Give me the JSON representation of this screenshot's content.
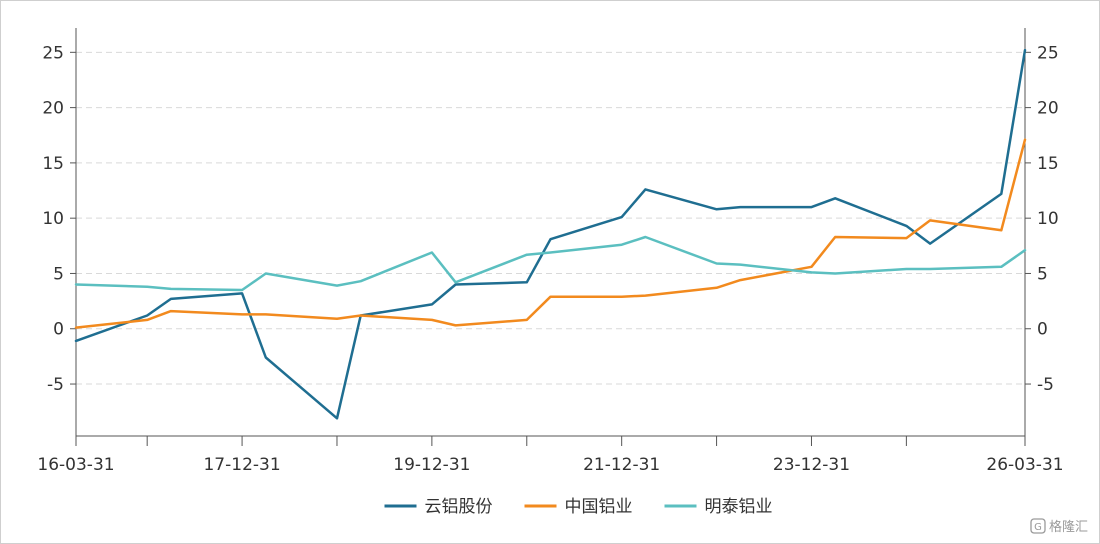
{
  "chart_data": {
    "type": "line",
    "x_ticks": [
      "16-03-31",
      "17-12-31",
      "19-12-31",
      "21-12-31",
      "23-12-31",
      "26-03-31"
    ],
    "x_tick_months": [
      0,
      21,
      45,
      69,
      93,
      120
    ],
    "minor_tick_months": [
      9,
      33,
      57,
      81,
      105
    ],
    "ylim": [
      -9.7,
      27.2
    ],
    "y_ticks": [
      -5,
      0,
      5,
      10,
      15,
      20,
      25
    ],
    "grid": true,
    "legend_position": "bottom-center",
    "series": [
      {
        "name": "云铝股份",
        "color": "#1F6E91",
        "points": [
          [
            0,
            -1.1
          ],
          [
            9,
            1.2
          ],
          [
            12,
            2.7
          ],
          [
            21,
            3.2
          ],
          [
            24,
            -2.6
          ],
          [
            33,
            -8.1
          ],
          [
            36,
            1.2
          ],
          [
            45,
            2.2
          ],
          [
            48,
            4.0
          ],
          [
            57,
            4.2
          ],
          [
            60,
            8.1
          ],
          [
            69,
            10.1
          ],
          [
            72,
            12.6
          ],
          [
            81,
            10.8
          ],
          [
            84,
            11.0
          ],
          [
            93,
            11.0
          ],
          [
            96,
            11.8
          ],
          [
            105,
            9.3
          ],
          [
            108,
            7.7
          ],
          [
            117,
            12.2
          ],
          [
            120,
            25.2
          ]
        ]
      },
      {
        "name": "中国铝业",
        "color": "#F28A1E",
        "points": [
          [
            0,
            0.1
          ],
          [
            9,
            0.8
          ],
          [
            12,
            1.6
          ],
          [
            21,
            1.3
          ],
          [
            24,
            1.3
          ],
          [
            33,
            0.9
          ],
          [
            36,
            1.2
          ],
          [
            45,
            0.8
          ],
          [
            48,
            0.3
          ],
          [
            57,
            0.8
          ],
          [
            60,
            2.9
          ],
          [
            69,
            2.9
          ],
          [
            72,
            3.0
          ],
          [
            81,
            3.7
          ],
          [
            84,
            4.4
          ],
          [
            93,
            5.6
          ],
          [
            96,
            8.3
          ],
          [
            105,
            8.2
          ],
          [
            108,
            9.8
          ],
          [
            117,
            8.9
          ],
          [
            120,
            17.1
          ]
        ]
      },
      {
        "name": "明泰铝业",
        "color": "#5BBFC0",
        "points": [
          [
            0,
            4.0
          ],
          [
            9,
            3.8
          ],
          [
            12,
            3.6
          ],
          [
            21,
            3.5
          ],
          [
            24,
            5.0
          ],
          [
            33,
            3.9
          ],
          [
            36,
            4.3
          ],
          [
            45,
            6.9
          ],
          [
            48,
            4.2
          ],
          [
            57,
            6.7
          ],
          [
            60,
            6.9
          ],
          [
            69,
            7.6
          ],
          [
            72,
            8.3
          ],
          [
            81,
            5.9
          ],
          [
            84,
            5.8
          ],
          [
            93,
            5.1
          ],
          [
            96,
            5.0
          ],
          [
            105,
            5.4
          ],
          [
            108,
            5.4
          ],
          [
            117,
            5.6
          ],
          [
            120,
            7.1
          ]
        ]
      }
    ]
  },
  "watermark": {
    "text": "格隆汇"
  }
}
